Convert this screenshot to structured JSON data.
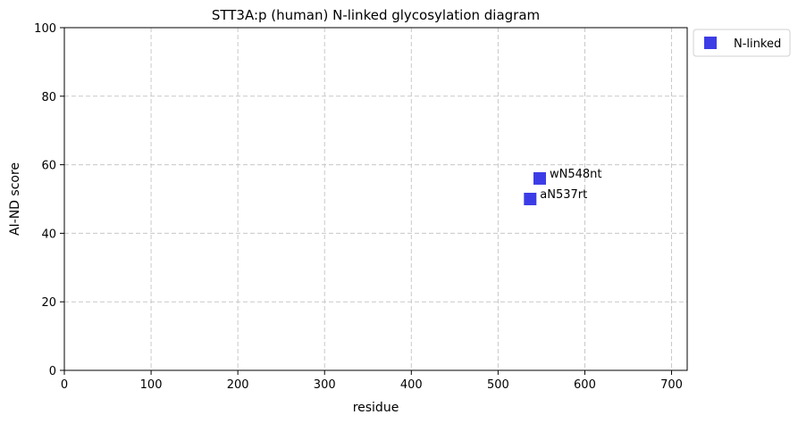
{
  "chart_data": {
    "type": "scatter",
    "title": "STT3A:p (human) N-linked glycosylation diagram",
    "xlabel": "residue",
    "ylabel": "AI-ND score",
    "xlim": [
      0,
      718
    ],
    "ylim": [
      0,
      100
    ],
    "xticks": [
      0,
      100,
      200,
      300,
      400,
      500,
      600,
      700
    ],
    "yticks": [
      0,
      20,
      40,
      60,
      80,
      100
    ],
    "grid": true,
    "legend_position": "outside-top-right",
    "series": [
      {
        "name": "N-linked",
        "color": "#3c3ce6",
        "marker": "square",
        "points": [
          {
            "x": 537,
            "y": 50,
            "label": "aN537rt"
          },
          {
            "x": 548,
            "y": 56,
            "label": "wN548nt"
          }
        ]
      }
    ]
  }
}
